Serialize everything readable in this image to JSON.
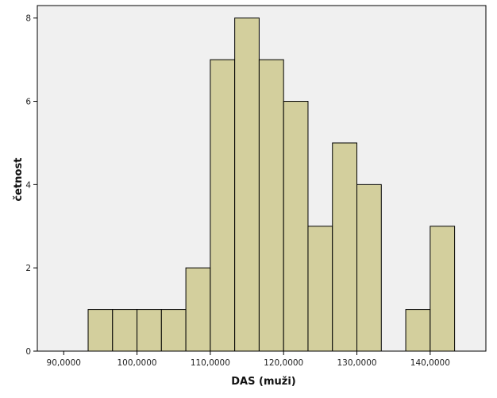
{
  "chart_data": {
    "type": "bar",
    "variant": "histogram",
    "title": "",
    "xlabel": "DAS (muži)",
    "ylabel": "četnost",
    "bin_width": 3.3333,
    "bins": [
      {
        "start": 93.3333,
        "end": 96.6667,
        "count": 1
      },
      {
        "start": 96.6667,
        "end": 100.0,
        "count": 1
      },
      {
        "start": 100.0,
        "end": 103.3333,
        "count": 1
      },
      {
        "start": 103.3333,
        "end": 106.6667,
        "count": 1
      },
      {
        "start": 106.6667,
        "end": 110.0,
        "count": 2
      },
      {
        "start": 110.0,
        "end": 113.3333,
        "count": 7
      },
      {
        "start": 113.3333,
        "end": 116.6667,
        "count": 8
      },
      {
        "start": 116.6667,
        "end": 120.0,
        "count": 7
      },
      {
        "start": 120.0,
        "end": 123.3333,
        "count": 6
      },
      {
        "start": 123.3333,
        "end": 126.6667,
        "count": 3
      },
      {
        "start": 126.6667,
        "end": 130.0,
        "count": 5
      },
      {
        "start": 130.0,
        "end": 133.3333,
        "count": 4
      },
      {
        "start": 133.3333,
        "end": 136.6667,
        "count": 0
      },
      {
        "start": 136.6667,
        "end": 140.0,
        "count": 1
      },
      {
        "start": 140.0,
        "end": 143.3333,
        "count": 3
      }
    ],
    "xlim": [
      86.4,
      147.6
    ],
    "ylim": [
      0,
      8.3
    ],
    "x_ticks": [
      90,
      100,
      110,
      120,
      130,
      140
    ],
    "x_tick_labels": [
      "90,0000",
      "100,0000",
      "110,0000",
      "120,0000",
      "130,0000",
      "140,0000"
    ],
    "y_ticks": [
      0,
      2,
      4,
      6,
      8
    ],
    "y_tick_labels": [
      "0",
      "2",
      "4",
      "6",
      "8"
    ],
    "grid": false,
    "legend": "none",
    "colors": {
      "bar_fill": "#d3cf9d",
      "bar_stroke": "#000000",
      "plot_background": "#f0f0f0",
      "page_background": "#ffffff"
    }
  }
}
